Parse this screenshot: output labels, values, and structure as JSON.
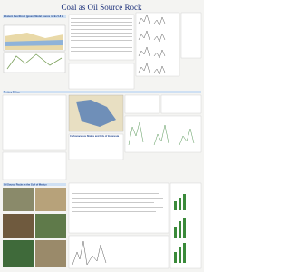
{
  "header": {
    "title": "Coal as Oil Source Rock"
  },
  "sections": [
    {
      "title": "Western Overthrust (green) Model source rocks 5-8 in"
    },
    {
      "title": "Tertiary Deltas"
    },
    {
      "title": "Carbonaceous Shales and Oils of Indonesia"
    },
    {
      "title": "Oil Source Rocks in the Gulf of Mexico"
    }
  ]
}
